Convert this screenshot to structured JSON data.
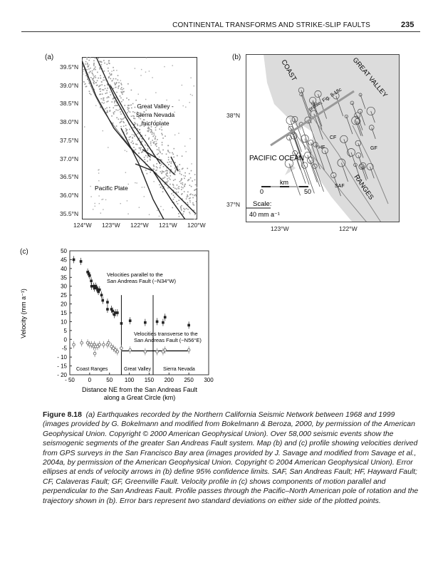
{
  "header": {
    "running_title": "CONTINENTAL TRANSFORMS AND STRIKE-SLIP FAULTS",
    "page_number": "235"
  },
  "panel_a": {
    "label": "(a)",
    "lat_ticks": [
      "39.5°N",
      "39.0°N",
      "38.5°N",
      "38.0°N",
      "37.5°N",
      "37.0°N",
      "36.5°N",
      "36.0°N",
      "35.5°N"
    ],
    "lon_ticks": [
      "124°W",
      "123°W",
      "122°W",
      "121°W",
      "120°W"
    ],
    "label_microplate": [
      "Great Valley -",
      "Sierra Nevada",
      "microplate"
    ],
    "label_pacific": "Pacific Plate"
  },
  "panel_b": {
    "label": "(b)",
    "lat_ticks": [
      "38°N",
      "37°N"
    ],
    "lon_ticks": [
      "123°W",
      "122°W"
    ],
    "coast": "COAST",
    "great_valley": "GREAT VALLEY",
    "ranges": "RANGES",
    "pacific_ocean": "PACIFIC OCEAN",
    "profile": "profile, Fig. 8.18c",
    "faults": [
      "CF",
      "HF",
      "GF",
      "SAF"
    ],
    "km_label": "km",
    "km_ticks": [
      "0",
      "50"
    ],
    "scale_label": "Scale:",
    "scale_value": "40 mm a⁻¹"
  },
  "chart_data": {
    "type": "scatter",
    "panel_label": "(c)",
    "xlabel": [
      "Distance NE from the San Andreas Fault",
      "along a Great Circle (km)"
    ],
    "ylabel": "Velocity (mm a⁻¹)",
    "xlim": [
      -50,
      300
    ],
    "ylim": [
      -20,
      50
    ],
    "x_ticks": [
      "- 50",
      "0",
      "50",
      "100",
      "150",
      "200",
      "250",
      "300"
    ],
    "y_ticks": [
      "50",
      "45",
      "40",
      "35",
      "30",
      "25",
      "20",
      "15",
      "10",
      "5",
      "0",
      "-5",
      "- 10",
      "- 15",
      "- 20"
    ],
    "annotations": {
      "parallel": [
        "Velocities parallel to the",
        "San Andreas Fault (~N34°W)"
      ],
      "transverse": [
        "Velocities transverse to the",
        "San Andreas Fault (~N56°E)"
      ],
      "regions": [
        "Coast Ranges",
        "Great Valley",
        "Sierra Nevada"
      ]
    },
    "region_boundaries_km": [
      80,
      160
    ],
    "transverse_mean": -6.5,
    "series": [
      {
        "marker": "filled",
        "color": "#222222",
        "points": [
          [
            -40,
            45
          ],
          [
            -22,
            44
          ],
          [
            -5,
            38
          ],
          [
            -2,
            37
          ],
          [
            0,
            36
          ],
          [
            4,
            33
          ],
          [
            5,
            30
          ],
          [
            10,
            30
          ],
          [
            12,
            29
          ],
          [
            15,
            30
          ],
          [
            18,
            29
          ],
          [
            20,
            28
          ],
          [
            22,
            27
          ],
          [
            25,
            28
          ],
          [
            30,
            25
          ],
          [
            33,
            22
          ],
          [
            45,
            21
          ],
          [
            45,
            17
          ],
          [
            55,
            17
          ],
          [
            58,
            16
          ],
          [
            62,
            14
          ],
          [
            65,
            15
          ],
          [
            70,
            15
          ],
          [
            80,
            9
          ],
          [
            102,
            10.5
          ],
          [
            140,
            9.5
          ],
          [
            170,
            10
          ],
          [
            185,
            9.5
          ],
          [
            190,
            12.5
          ],
          [
            250,
            8
          ]
        ]
      },
      {
        "marker": "open",
        "color": "#777777",
        "points": [
          [
            -40,
            -3
          ],
          [
            -20,
            -2
          ],
          [
            -5,
            -2
          ],
          [
            0,
            -3
          ],
          [
            5,
            -3
          ],
          [
            10,
            -4
          ],
          [
            12,
            -3
          ],
          [
            13,
            -8
          ],
          [
            15,
            -4
          ],
          [
            20,
            -4
          ],
          [
            25,
            -3
          ],
          [
            35,
            -3
          ],
          [
            45,
            -3
          ],
          [
            48,
            -2
          ],
          [
            55,
            -4
          ],
          [
            60,
            -5
          ],
          [
            65,
            -6
          ],
          [
            70,
            -7
          ],
          [
            80,
            -5
          ],
          [
            102,
            -6
          ],
          [
            140,
            -7
          ],
          [
            170,
            -7
          ],
          [
            185,
            -7
          ],
          [
            190,
            -6
          ],
          [
            250,
            -6
          ]
        ]
      }
    ]
  },
  "caption": {
    "figure": "Figure 8.18",
    "text": "(a) Earthquakes recorded by the Northern California Seismic Network between 1968 and 1999 (images provided by G. Bokelmann and modified from Bokelmann & Beroza, 2000, by permission of the American Geophysical Union. Copyright © 2000 American Geophysical Union). Over 58,000 seismic events show the seismogenic segments of the greater San Andreas Fault system. Map (b) and (c) profile showing velocities derived from GPS surveys in the San Francisco Bay area (images provided by J. Savage and modified from Savage et al., 2004a, by permission of the American Geophysical Union. Copyright © 2004 American Geophysical Union). Error ellipses at ends of velocity arrows in (b) define 95% confidence limits. SAF, San Andreas Fault; HF, Hayward Fault; CF, Calaveras Fault; GF, Greenville Fault. Velocity profile in (c) shows components of motion parallel and perpendicular to the San Andreas Fault. Profile passes through the Pacific–North American pole of rotation and the trajectory shown in (b). Error bars represent two standard deviations on either side of the plotted points."
  }
}
